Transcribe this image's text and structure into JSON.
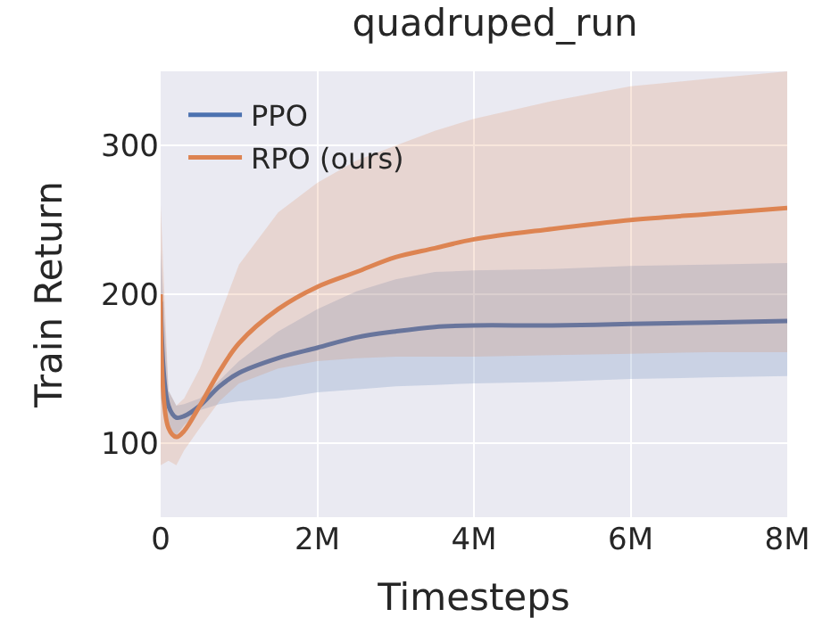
{
  "chart_data": {
    "type": "line",
    "title": "quadruped_run",
    "xlabel": "Timesteps",
    "ylabel": "Train Return",
    "x": [
      0,
      0.1,
      0.2,
      0.3,
      0.5,
      0.75,
      1,
      1.5,
      2,
      2.5,
      3,
      3.5,
      4,
      5,
      6,
      7,
      8
    ],
    "series": [
      {
        "name": "PPO",
        "color": "#4c72b0",
        "values": [
          195,
          125,
          117,
          118,
          125,
          138,
          147,
          157,
          164,
          171,
          175,
          178,
          179,
          179,
          180,
          181,
          182
        ],
        "lower": [
          130,
          110,
          105,
          112,
          122,
          126,
          128,
          130,
          134,
          136,
          138,
          139,
          140,
          141,
          143,
          144,
          145
        ],
        "upper": [
          230,
          135,
          125,
          126,
          130,
          142,
          155,
          175,
          190,
          202,
          210,
          215,
          216,
          217,
          219,
          220,
          221
        ]
      },
      {
        "name": "RPO (ours)",
        "color": "#dd8452",
        "values": [
          200,
          110,
          104,
          108,
          125,
          148,
          167,
          190,
          205,
          215,
          225,
          231,
          237,
          244,
          250,
          254,
          258
        ],
        "lower": [
          85,
          88,
          85,
          95,
          110,
          128,
          140,
          150,
          155,
          157,
          158,
          158,
          158,
          159,
          160,
          161,
          161
        ],
        "upper": [
          260,
          135,
          125,
          130,
          150,
          185,
          220,
          255,
          275,
          290,
          300,
          310,
          318,
          330,
          340,
          345,
          350
        ]
      }
    ],
    "xlim": [
      0,
      8
    ],
    "xticks": [
      0,
      {
        "value": 2,
        "label": "2M"
      },
      {
        "value": 4,
        "label": "4M"
      },
      {
        "value": 6,
        "label": "6M"
      },
      {
        "value": 8,
        "label": "8M"
      }
    ],
    "ylim": [
      50,
      350
    ],
    "yticks": [
      100,
      200,
      300
    ],
    "grid": true,
    "legend": "top left",
    "line_style": "solid",
    "marker": "none"
  }
}
